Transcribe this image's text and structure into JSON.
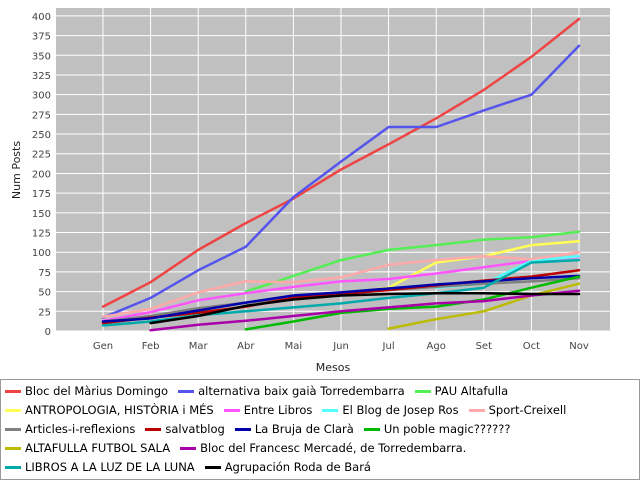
{
  "chart_data": {
    "type": "line",
    "xlabel": "Mesos",
    "ylabel": "Num Posts",
    "ylim": [
      0,
      410
    ],
    "yticks": [
      0,
      25,
      50,
      75,
      100,
      125,
      150,
      175,
      200,
      225,
      250,
      275,
      300,
      325,
      350,
      375,
      400
    ],
    "grid": true,
    "legend_position": "bottom",
    "categories": [
      "Gen",
      "Feb",
      "Mar",
      "Abr",
      "Mai",
      "Jun",
      "Jul",
      "Ago",
      "Set",
      "Oct",
      "Nov"
    ],
    "series": [
      {
        "name": "Bloc del Màrius Domingo",
        "color": "#ee4444",
        "values": [
          31,
          62,
          103,
          137,
          168,
          205,
          237,
          270,
          306,
          348,
          396
        ]
      },
      {
        "name": "alternativa baix gaià Torredembarra",
        "color": "#5555ee",
        "values": [
          17,
          42,
          77,
          107,
          170,
          215,
          259,
          259,
          280,
          300,
          362
        ]
      },
      {
        "name": "PAU Altafulla",
        "color": "#55ee55",
        "values": [
          null,
          null,
          null,
          50,
          70,
          90,
          103,
          109,
          116,
          119,
          126
        ]
      },
      {
        "name": "ANTROPOLOGIA, HISTÒRIA i MÉS",
        "color": "#ffff55",
        "values": [
          null,
          null,
          null,
          null,
          null,
          47,
          55,
          87,
          95,
          109,
          114
        ]
      },
      {
        "name": "Entre Libros",
        "color": "#ff55ff",
        "values": [
          13,
          24,
          39,
          48,
          56,
          63,
          66,
          73,
          81,
          89,
          94
        ]
      },
      {
        "name": "El Blog de Josep Ros",
        "color": "#55ffff",
        "values": [
          null,
          null,
          null,
          null,
          null,
          null,
          null,
          55,
          60,
          89,
          95
        ]
      },
      {
        "name": "Sport-Creixell",
        "color": "#ffaaaa",
        "values": [
          18,
          28,
          49,
          63,
          62,
          68,
          84,
          90,
          95,
          91,
          100
        ]
      },
      {
        "name": "Articles-i-reflexions",
        "color": "#808080",
        "values": [
          12,
          19,
          29,
          36,
          41,
          47,
          52,
          56,
          60,
          63,
          67
        ]
      },
      {
        "name": "salvatblog",
        "color": "#bb0000",
        "values": [
          10,
          17,
          23,
          31,
          42,
          47,
          52,
          58,
          64,
          69,
          77
        ]
      },
      {
        "name": "La Bruja de Clarà",
        "color": "#0000aa",
        "values": [
          12,
          16,
          26,
          36,
          45,
          49,
          54,
          59,
          63,
          67,
          70
        ]
      },
      {
        "name": "Un poble magic??????",
        "color": "#00bb00",
        "values": [
          null,
          null,
          null,
          2,
          12,
          23,
          28,
          31,
          40,
          55,
          69
        ]
      },
      {
        "name": "ALTAFULLA FUTBOL SALA",
        "color": "#bbbb00",
        "values": [
          null,
          null,
          null,
          null,
          null,
          null,
          3,
          15,
          25,
          45,
          60
        ]
      },
      {
        "name": "Bloc del Francesc Mercadé, de Torredembarra.",
        "color": "#aa00aa",
        "values": [
          null,
          1,
          8,
          13,
          19,
          25,
          30,
          35,
          38,
          45,
          51
        ]
      },
      {
        "name": "LIBROS A LA LUZ DE LA LUNA",
        "color": "#00aaaa",
        "values": [
          7,
          12,
          20,
          25,
          30,
          35,
          42,
          48,
          55,
          87,
          90
        ]
      },
      {
        "name": "Agrupación Roda de Bará",
        "color": "#000000",
        "values": [
          null,
          10,
          19,
          32,
          40,
          45,
          47,
          48,
          48,
          47,
          47
        ]
      }
    ]
  }
}
